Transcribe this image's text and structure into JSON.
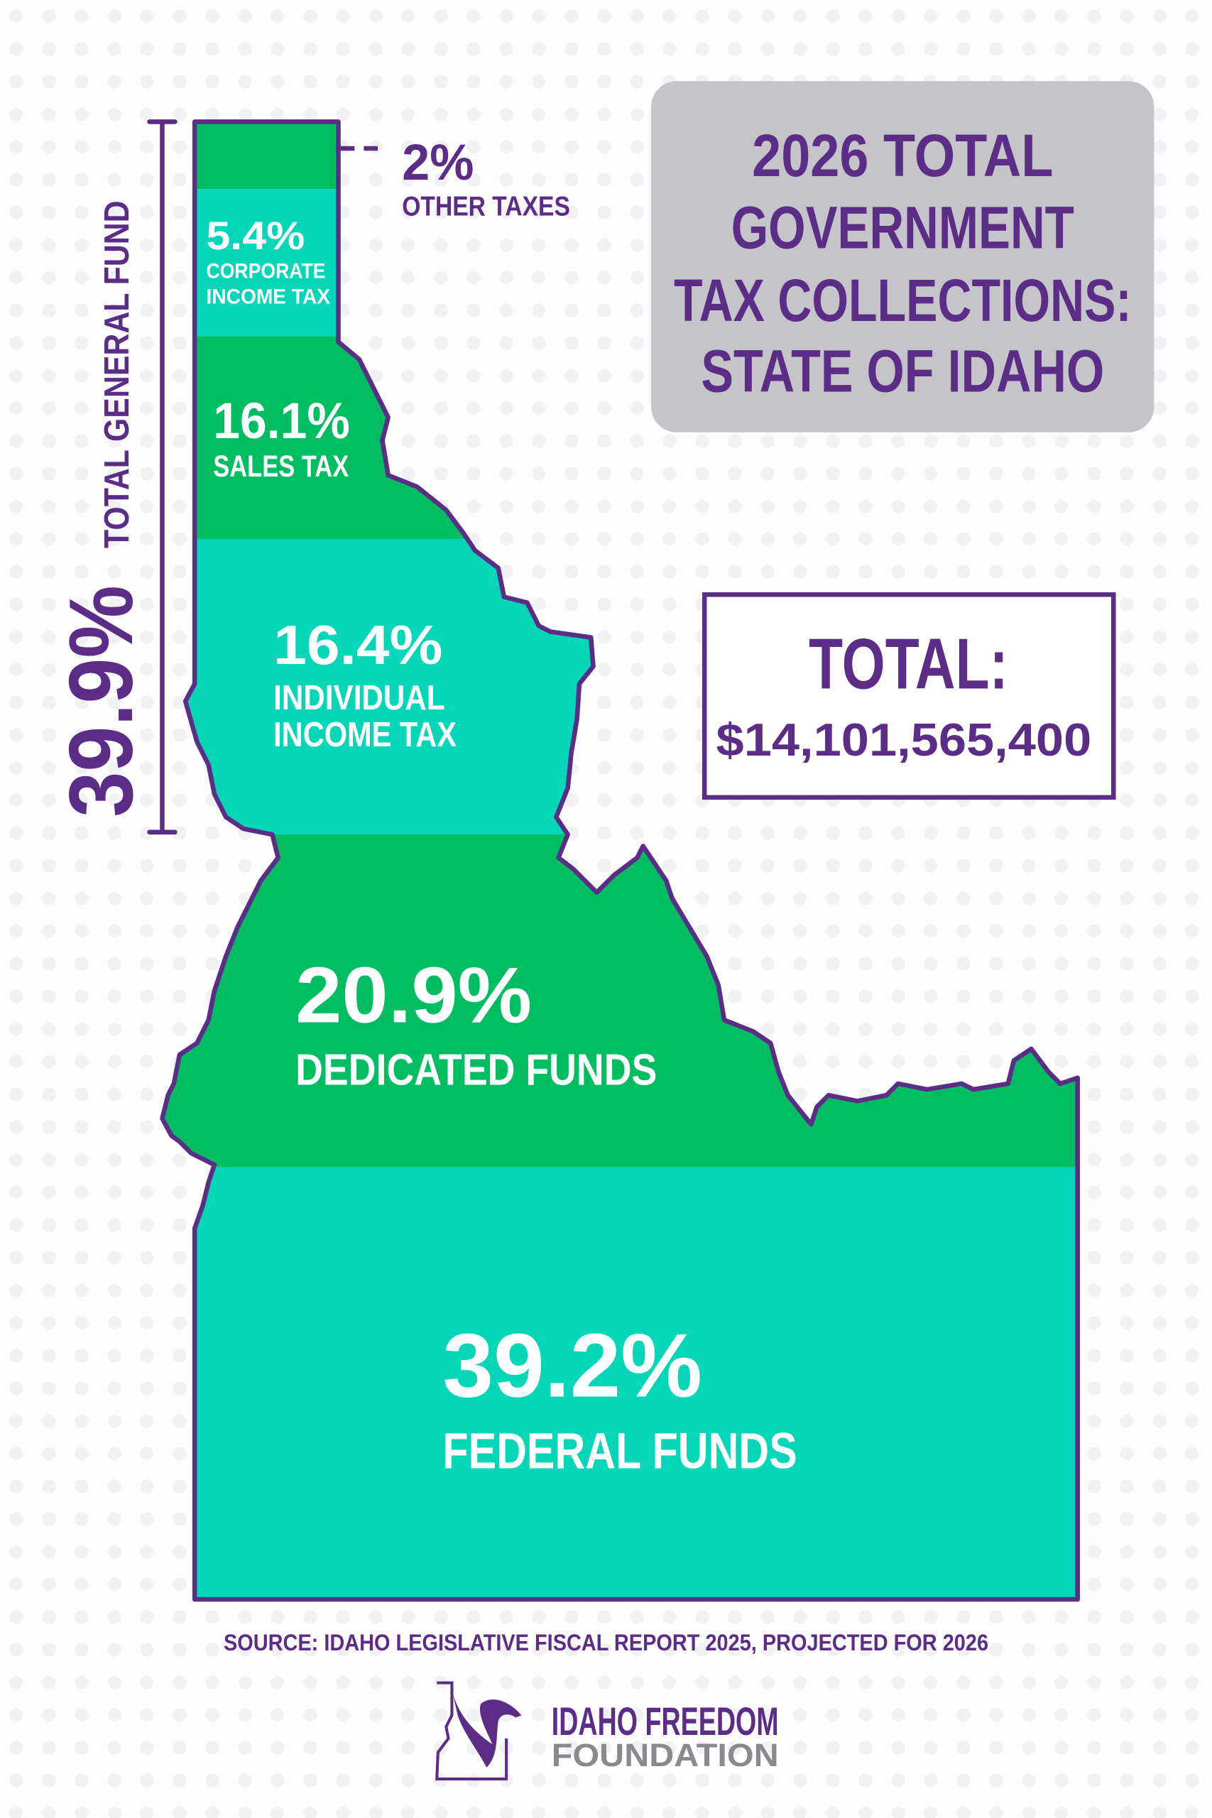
{
  "title": [
    "2026 TOTAL",
    "GOVERNMENT",
    "TAX COLLECTIONS:",
    "STATE OF IDAHO"
  ],
  "total": {
    "label": "TOTAL:",
    "value": "$14,101,565,400"
  },
  "general_fund": {
    "percent": "39.9%",
    "label": "TOTAL GENERAL FUND"
  },
  "segments": [
    {
      "percent": "2%",
      "label": "OTHER TAXES",
      "color": "#00bd62"
    },
    {
      "percent": "5.4%",
      "label_lines": [
        "CORPORATE",
        "INCOME TAX"
      ],
      "color": "#06d6b8"
    },
    {
      "percent": "16.1%",
      "label": "SALES TAX",
      "color": "#00bd62"
    },
    {
      "percent": "16.4%",
      "label_lines": [
        "INDIVIDUAL",
        "INCOME TAX"
      ],
      "color": "#06d6b8"
    },
    {
      "percent": "20.9%",
      "label": "DEDICATED FUNDS",
      "color": "#00bd62"
    },
    {
      "percent": "39.2%",
      "label": "FEDERAL FUNDS",
      "color": "#06d6b8"
    }
  ],
  "source": "SOURCE: IDAHO LEGISLATIVE FISCAL REPORT 2025, PROJECTED FOR 2026",
  "logo": {
    "line1": "IDAHO FREEDOM",
    "line2": "FOUNDATION"
  },
  "colors": {
    "purple": "#5b2d86",
    "green": "#00bd62",
    "teal": "#06d6b8",
    "title_box": "#c4c4c9",
    "logo_gray": "#8a8a8e"
  }
}
